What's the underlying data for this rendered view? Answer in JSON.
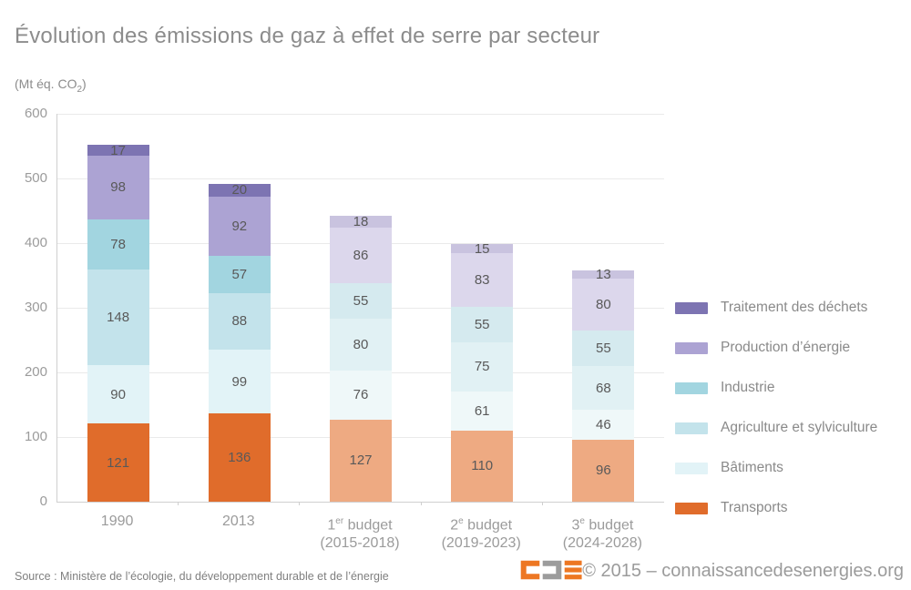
{
  "title": "Évolution des émissions de gaz à effet de serre par secteur",
  "units": {
    "pre": "(Mt éq. CO",
    "sub": "2",
    "post": ")"
  },
  "chart_data": {
    "type": "bar",
    "subtype": "stacked",
    "title": "Évolution des émissions de gaz à effet de serre par secteur",
    "ylabel": "(Mt éq. CO2)",
    "ylim": [
      0,
      600
    ],
    "yticks": [
      0,
      100,
      200,
      300,
      400,
      500,
      600
    ],
    "grid": true,
    "legend_position": "right",
    "categories": [
      {
        "line1_pre": "1990",
        "line1_sup": "",
        "line1_post": "",
        "line2": "",
        "muted": false
      },
      {
        "line1_pre": "2013",
        "line1_sup": "",
        "line1_post": "",
        "line2": "",
        "muted": false
      },
      {
        "line1_pre": "1",
        "line1_sup": "er",
        "line1_post": " budget",
        "line2": "(2015-2018)",
        "muted": true
      },
      {
        "line1_pre": "2",
        "line1_sup": "e",
        "line1_post": " budget",
        "line2": "(2019-2023)",
        "muted": true
      },
      {
        "line1_pre": "3",
        "line1_sup": "e",
        "line1_post": " budget",
        "line2": "(2024-2028)",
        "muted": true
      }
    ],
    "series": [
      {
        "name": "Transports",
        "color": "#e06c2b",
        "color_muted": "#eeaa82",
        "values": [
          121,
          136,
          127,
          110,
          96
        ]
      },
      {
        "name": "Bâtiments",
        "color": "#e2f3f7",
        "color_muted": "#eff8f9",
        "values": [
          90,
          99,
          76,
          61,
          46
        ]
      },
      {
        "name": "Agriculture et sylviculture",
        "color": "#c3e3eb",
        "color_muted": "#e1f1f4",
        "values": [
          148,
          88,
          80,
          75,
          68
        ]
      },
      {
        "name": "Industrie",
        "color": "#a2d5e0",
        "color_muted": "#d5eaef",
        "values": [
          78,
          57,
          55,
          55,
          55
        ]
      },
      {
        "name": "Production d’énergie",
        "color": "#aca3d3",
        "color_muted": "#dcd7ec",
        "values": [
          98,
          92,
          86,
          83,
          80
        ]
      },
      {
        "name": "Traitement des déchets",
        "color": "#7d74b2",
        "color_muted": "#c9c3df",
        "values": [
          17,
          20,
          18,
          15,
          13
        ]
      }
    ],
    "totals": [
      552,
      492,
      442,
      399,
      358
    ]
  },
  "footer": {
    "source": "Source : Ministère de l’écologie, du développement durable et de l’énergie",
    "copyright": "© 2015 – connaissancedesenergies.org",
    "logo_orange": "#ed7723",
    "logo_gray": "#9c9c9c"
  }
}
